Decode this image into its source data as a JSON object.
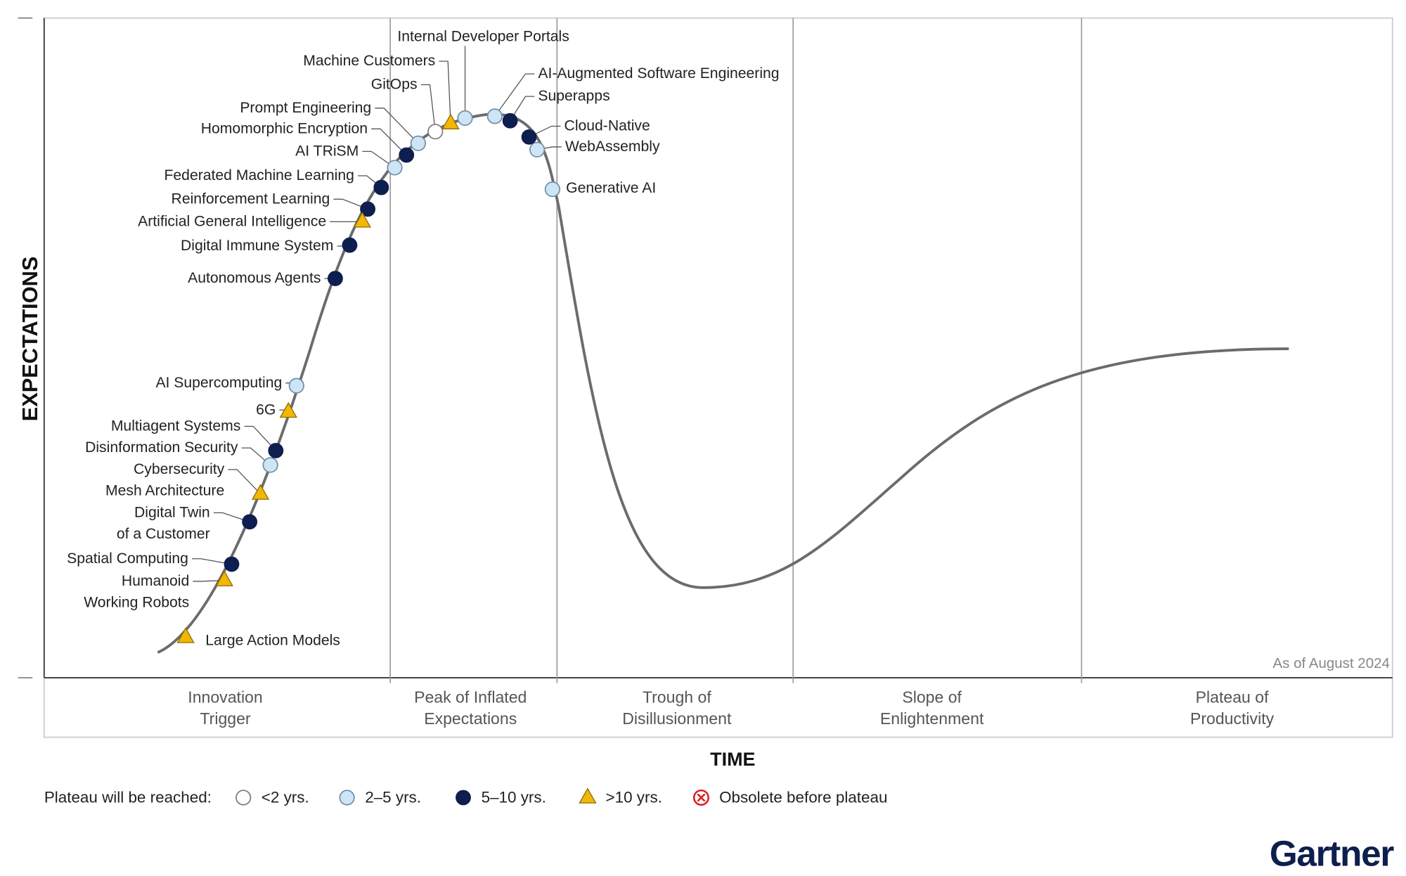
{
  "axis": {
    "y": "EXPECTATIONS",
    "x": "TIME"
  },
  "phases": [
    "Innovation\nTrigger",
    "Peak of Inflated\nExpectations",
    "Trough of\nDisillusionment",
    "Slope of\nEnlightenment",
    "Plateau of\nProductivity"
  ],
  "note": "As of August 2024",
  "legend": {
    "title": "Plateau will be reached:",
    "items": [
      {
        "label": "<2 yrs.",
        "technologies": [
          "GitOps"
        ]
      },
      {
        "label": "2–5 yrs.",
        "technologies": [
          "Disinformation Security",
          "AI Supercomputing",
          "AI TRiSM",
          "Prompt Engineering",
          "Internal Developer Portals",
          "AI-Augmented Software Engineering",
          "WebAssembly",
          "Generative AI"
        ]
      },
      {
        "label": "5–10 yrs.",
        "technologies": [
          "Spatial Computing",
          "Digital Twin\nof a Customer",
          "Multiagent Systems",
          "Autonomous Agents",
          "Digital Immune System",
          "Reinforcement Learning",
          "Federated Machine Learning",
          "Homomorphic Encryption",
          "Superapps",
          "Cloud-Native"
        ]
      },
      {
        "label": ">10 yrs.",
        "technologies": [
          "Large Action Models",
          "Humanoid\nWorking Robots",
          "Cybersecurity\nMesh Architecture",
          "6G",
          "Artificial General Intelligence",
          "Machine Customers"
        ]
      },
      {
        "label": "Obsolete before plateau",
        "technologies": []
      }
    ]
  },
  "brand": "Gartner"
}
